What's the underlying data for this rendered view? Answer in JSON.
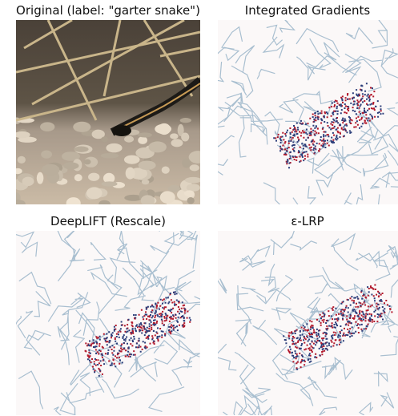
{
  "panels": [
    {
      "title": "Original (label: \"garter snake\")"
    },
    {
      "title": "Integrated Gradients"
    },
    {
      "title": "DeepLIFT (Rescale)"
    },
    {
      "title": "ε-LRP"
    }
  ]
}
